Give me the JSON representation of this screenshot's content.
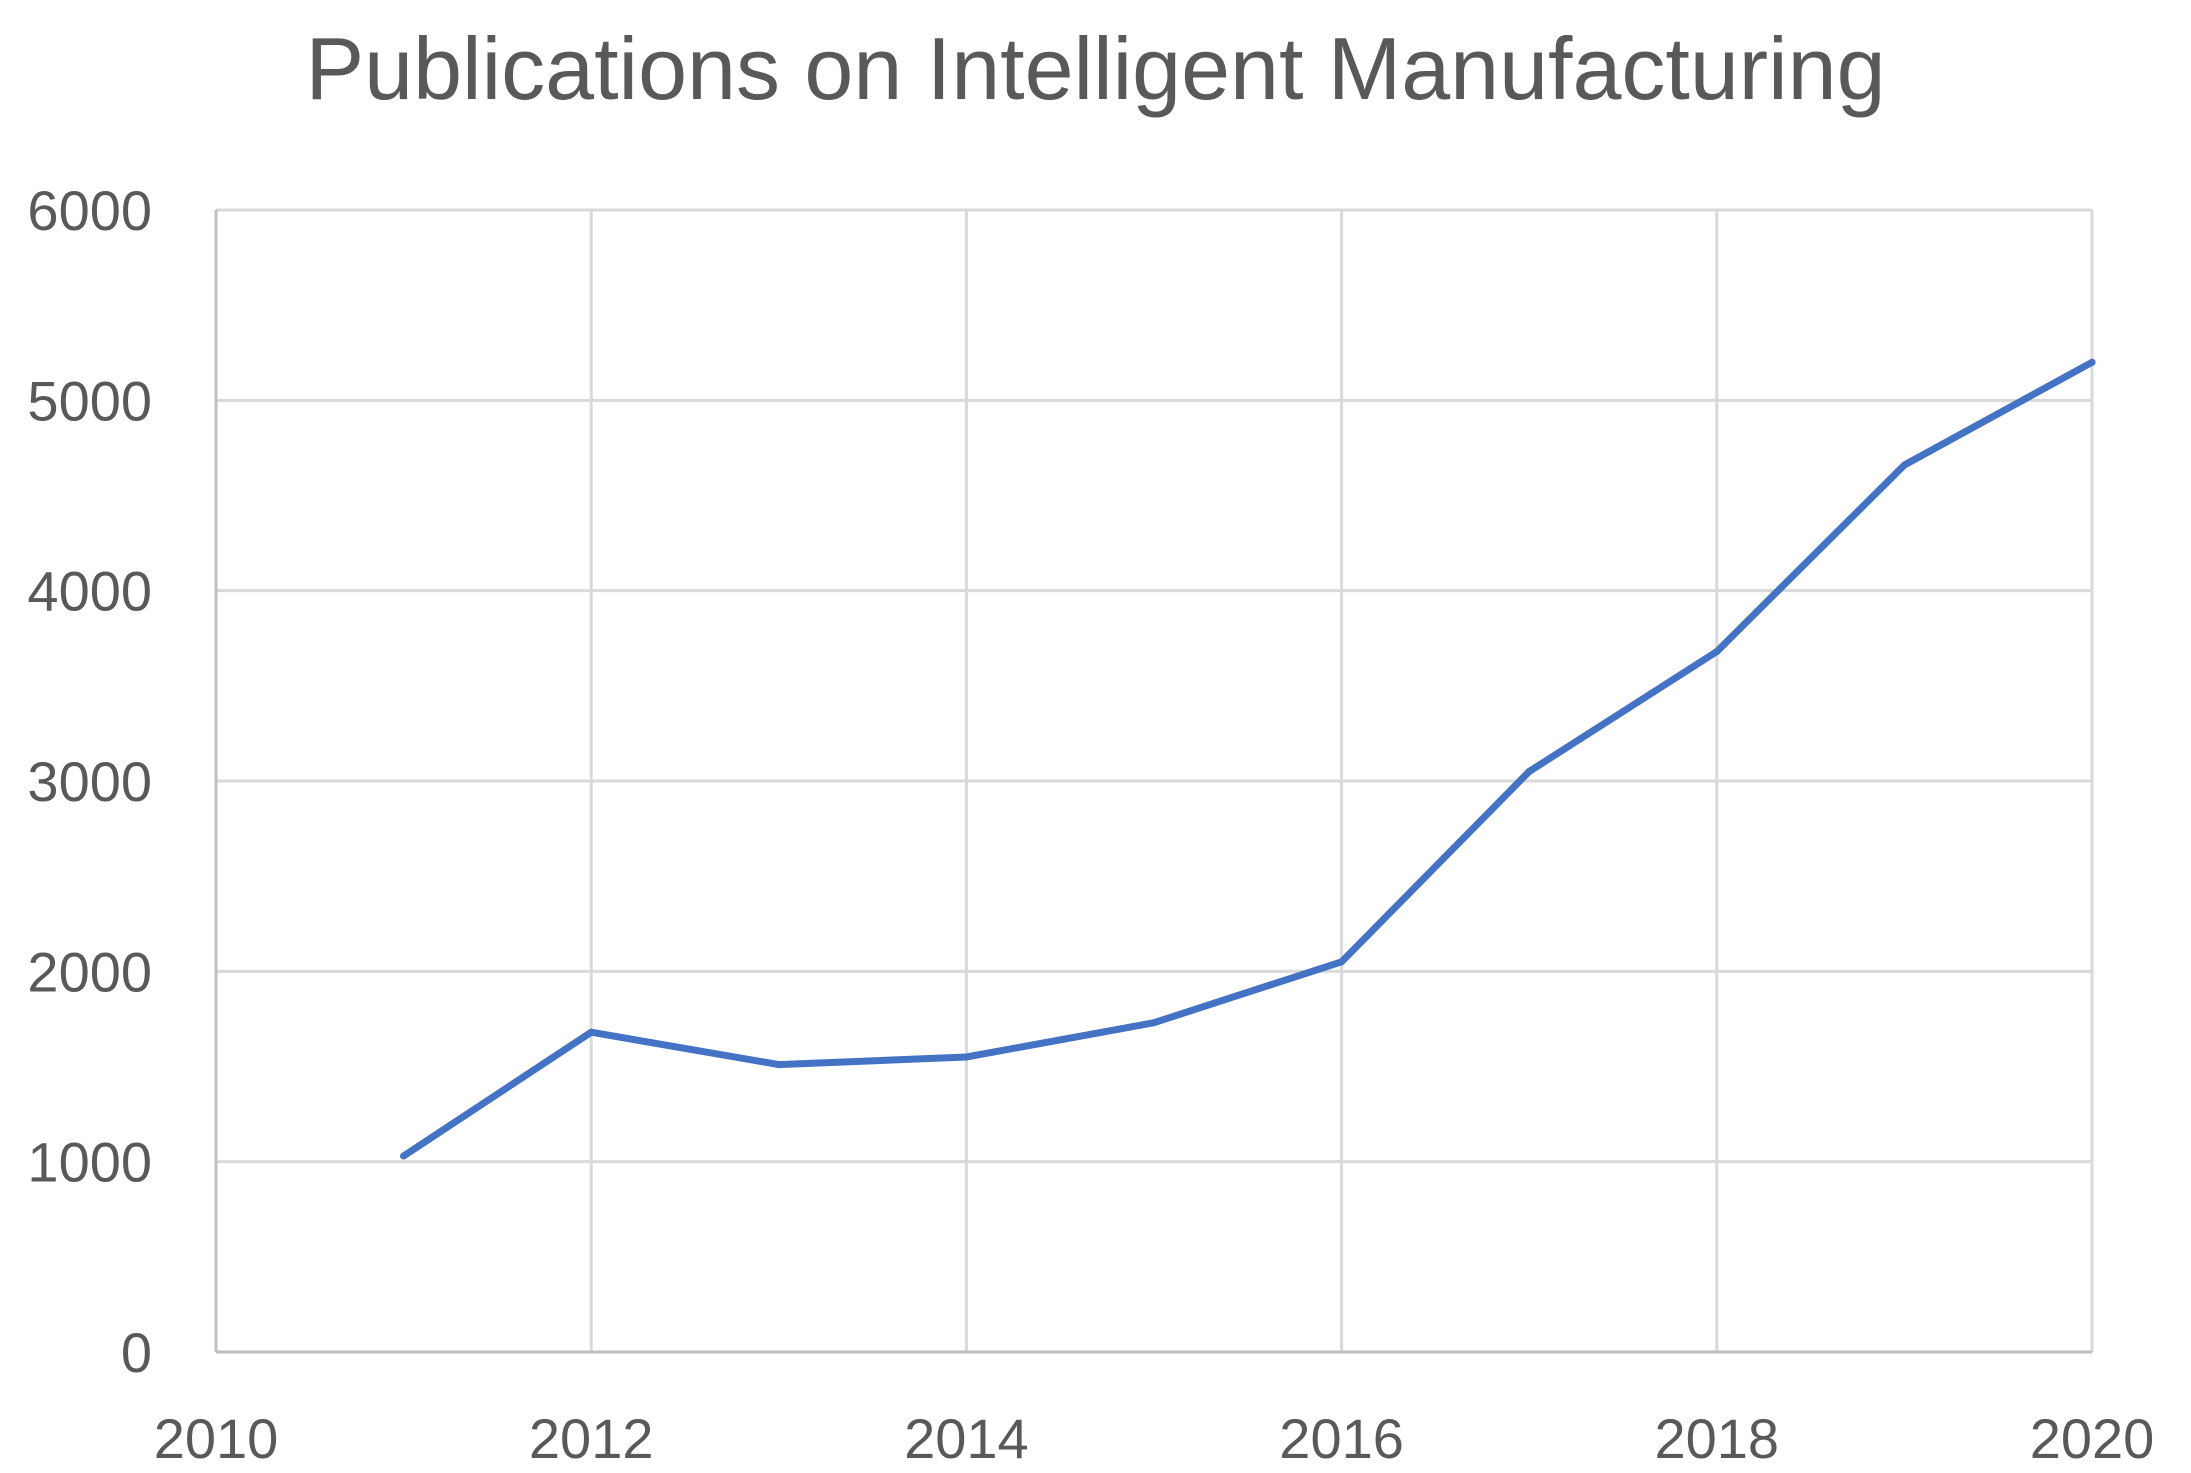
{
  "chart_data": {
    "type": "line",
    "title": "Publications on Intelligent Manufacturing",
    "xlabel": "",
    "ylabel": "",
    "xlim": [
      2010,
      2020
    ],
    "ylim": [
      0,
      6000
    ],
    "x_ticks": [
      "2010",
      "2012",
      "2014",
      "2016",
      "2018",
      "2020"
    ],
    "y_ticks": [
      "0",
      "1000",
      "2000",
      "3000",
      "4000",
      "5000",
      "6000"
    ],
    "grid": true,
    "legend": "none",
    "series": [
      {
        "x": [
          2011,
          2012,
          2013,
          2014,
          2015,
          2016,
          2017,
          2018,
          2019,
          2020
        ],
        "values": [
          1030,
          1680,
          1510,
          1550,
          1730,
          2050,
          3050,
          3680,
          4660,
          5200
        ],
        "color": "#4472C4"
      }
    ]
  }
}
